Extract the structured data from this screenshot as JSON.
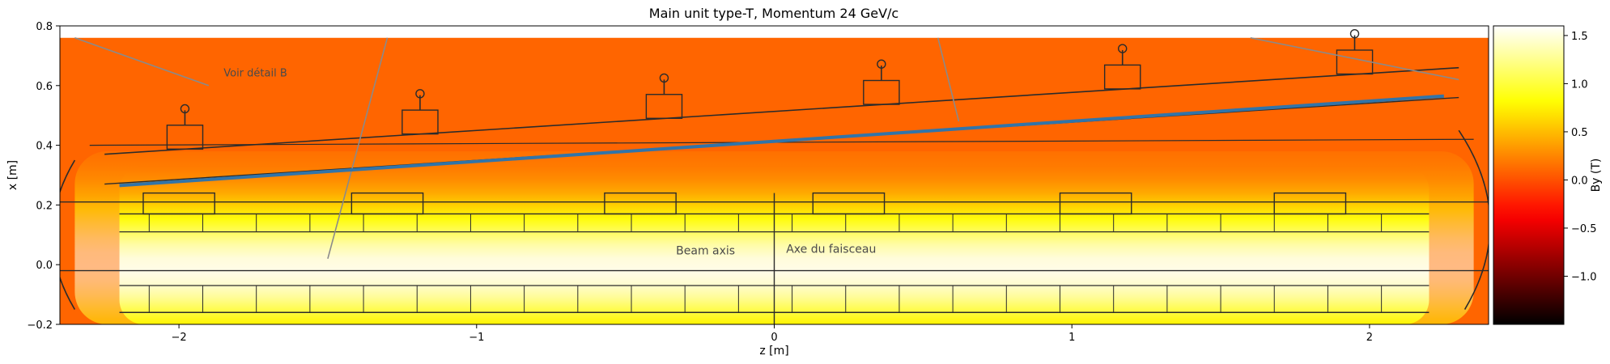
{
  "chart_data": {
    "type": "heatmap",
    "title": "Main unit type-T, Momentum 24 GeV/c",
    "xlabel": "z [m]",
    "ylabel": "x [m]",
    "xlim": [
      -2.4,
      2.4
    ],
    "ylim": [
      -0.2,
      0.8
    ],
    "field_extent": {
      "z": [
        -2.4,
        2.4
      ],
      "x": [
        -0.2,
        0.76
      ]
    },
    "xticks": [
      -2,
      -1,
      0,
      1,
      2
    ],
    "yticks": [
      -0.2,
      0.0,
      0.2,
      0.4,
      0.6,
      0.8
    ],
    "xtick_labels": [
      "−2",
      "−1",
      "0",
      "1",
      "2"
    ],
    "ytick_labels": [
      "−0.2",
      "0.0",
      "0.2",
      "0.4",
      "0.6",
      "0.8"
    ],
    "grid": false,
    "colorbar": {
      "label": "By (T)",
      "colormap": "hot",
      "range": [
        -1.5,
        1.6
      ],
      "ticks": [
        -1.0,
        -0.5,
        0.0,
        0.5,
        1.0,
        1.5
      ],
      "tick_labels": [
        "−1.0",
        "−0.5",
        "0.0",
        "0.5",
        "1.0",
        "1.5"
      ]
    },
    "field_model": {
      "background_By": 0.1,
      "peak_By": 1.55,
      "core_center_x": 0.0,
      "core_half_width_x": 0.12,
      "core_z": [
        -2.2,
        2.2
      ]
    },
    "trajectory": {
      "color": "#3274a8",
      "z": [
        -2.2,
        2.25
      ],
      "x": [
        0.265,
        0.565
      ]
    },
    "overlay_annotations": [
      "Voir détail B",
      "Beam axis",
      "Axe du faisceau"
    ]
  },
  "colors": {
    "trajectory": "#3274a8",
    "drawing_lines": "#2b2b2b"
  }
}
